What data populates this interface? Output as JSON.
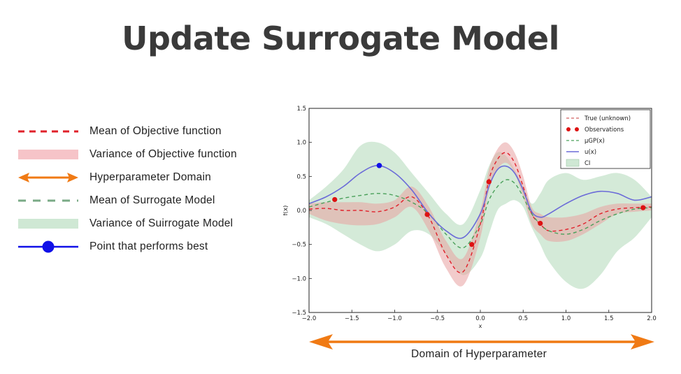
{
  "title": "Update Surrogate Model",
  "legend": [
    {
      "label": "Mean of Objective function",
      "symbol": "red-dashed-line"
    },
    {
      "label": "Variance of Objective function",
      "symbol": "pink-band"
    },
    {
      "label": "Hyperparameter Domain",
      "symbol": "orange-double-arrow"
    },
    {
      "label": "Mean of Surrogate Model",
      "symbol": "green-dashed-line"
    },
    {
      "label": "Variance of Suirrogate Model",
      "symbol": "green-band"
    },
    {
      "label": "Point that performs best",
      "symbol": "blue-line-dot"
    }
  ],
  "domain_label": "Domain of Hyperparameter",
  "colors": {
    "title": "#3a3a3a",
    "red_mean": "#e0202a",
    "pink_band": "#f6c4c8",
    "orange": "#f07a14",
    "green_mean": "#7aaa86",
    "green_band": "#cfe8d4",
    "blue": "#1010e8",
    "surrogate_line": "#6b6bd8",
    "obs": "#dd1111"
  },
  "chart_data": {
    "type": "line",
    "xlabel": "x",
    "ylabel": "f(x)",
    "xlim": [
      -2.0,
      2.0
    ],
    "ylim": [
      -1.5,
      1.5
    ],
    "xticks": [
      "−2.0",
      "−1.5",
      "−1.0",
      "−0.5",
      "0.0",
      "0.5",
      "1.0",
      "1.5",
      "2.0"
    ],
    "yticks": [
      "1.5",
      "1.0",
      "0.5",
      "0.0",
      "−0.5",
      "−1.0",
      "−1.5"
    ],
    "legend": [
      "True (unknown)",
      "Observations",
      "μGP(x)",
      "u(x)",
      "CI"
    ],
    "legend_position": "top-right",
    "x": [
      -2.0,
      -1.8,
      -1.6,
      -1.4,
      -1.2,
      -1.0,
      -0.8,
      -0.6,
      -0.4,
      -0.2,
      0.0,
      0.1,
      0.2,
      0.3,
      0.4,
      0.5,
      0.6,
      0.7,
      0.8,
      1.0,
      1.2,
      1.4,
      1.6,
      1.8,
      2.0
    ],
    "series": [
      {
        "name": "True (unknown)",
        "values": [
          0.02,
          0.03,
          0.0,
          0.0,
          -0.02,
          0.05,
          0.2,
          -0.1,
          -0.65,
          -0.9,
          -0.2,
          0.45,
          0.75,
          0.85,
          0.7,
          0.35,
          -0.05,
          -0.2,
          -0.3,
          -0.28,
          -0.2,
          -0.05,
          0.02,
          0.04,
          0.05
        ]
      },
      {
        "name": "μGP(x)",
        "values": [
          0.05,
          0.12,
          0.18,
          0.22,
          0.25,
          0.22,
          0.12,
          -0.05,
          -0.35,
          -0.55,
          -0.2,
          0.15,
          0.35,
          0.45,
          0.4,
          0.2,
          -0.05,
          -0.2,
          -0.3,
          -0.35,
          -0.28,
          -0.15,
          -0.05,
          0.02,
          0.04
        ]
      },
      {
        "name": "u(x)",
        "values": [
          0.1,
          0.2,
          0.35,
          0.55,
          0.66,
          0.55,
          0.3,
          -0.05,
          -0.3,
          -0.4,
          -0.05,
          0.35,
          0.6,
          0.65,
          0.55,
          0.3,
          -0.02,
          -0.1,
          -0.05,
          0.1,
          0.22,
          0.28,
          0.25,
          0.15,
          0.2
        ]
      }
    ],
    "ci_band": {
      "upper": [
        0.15,
        0.35,
        0.6,
        0.95,
        1.0,
        0.85,
        0.55,
        0.25,
        -0.05,
        -0.2,
        0.3,
        0.65,
        0.85,
        0.8,
        0.6,
        0.35,
        0.1,
        0.25,
        0.45,
        0.55,
        0.45,
        0.5,
        0.55,
        0.45,
        0.2
      ],
      "lower": [
        -0.1,
        -0.2,
        -0.35,
        -0.5,
        -0.6,
        -0.5,
        -0.3,
        -0.35,
        -0.65,
        -0.95,
        -0.7,
        -0.35,
        0.0,
        0.1,
        0.15,
        0.05,
        -0.25,
        -0.5,
        -0.75,
        -1.05,
        -1.15,
        -0.95,
        -0.6,
        -0.4,
        -0.1
      ]
    },
    "true_band": {
      "upper": [
        0.1,
        0.12,
        0.12,
        0.12,
        0.1,
        0.15,
        0.35,
        0.05,
        -0.45,
        -0.7,
        0.0,
        0.6,
        0.9,
        1.0,
        0.85,
        0.5,
        0.05,
        -0.05,
        -0.1,
        -0.1,
        -0.05,
        0.05,
        0.1,
        0.1,
        0.1
      ],
      "lower": [
        -0.05,
        -0.15,
        -0.2,
        -0.22,
        -0.2,
        -0.1,
        0.05,
        -0.3,
        -0.85,
        -1.1,
        -0.4,
        0.3,
        0.6,
        0.7,
        0.55,
        0.2,
        -0.2,
        -0.35,
        -0.45,
        -0.45,
        -0.35,
        -0.2,
        -0.05,
        -0.02,
        0.0
      ]
    },
    "observations": [
      {
        "x": -1.7,
        "y": 0.16
      },
      {
        "x": -0.62,
        "y": -0.06
      },
      {
        "x": -0.1,
        "y": -0.5
      },
      {
        "x": 0.1,
        "y": 0.42
      },
      {
        "x": 0.7,
        "y": -0.19
      },
      {
        "x": 1.9,
        "y": 0.04
      }
    ],
    "best_point": {
      "x": -1.18,
      "y": 0.66
    }
  }
}
